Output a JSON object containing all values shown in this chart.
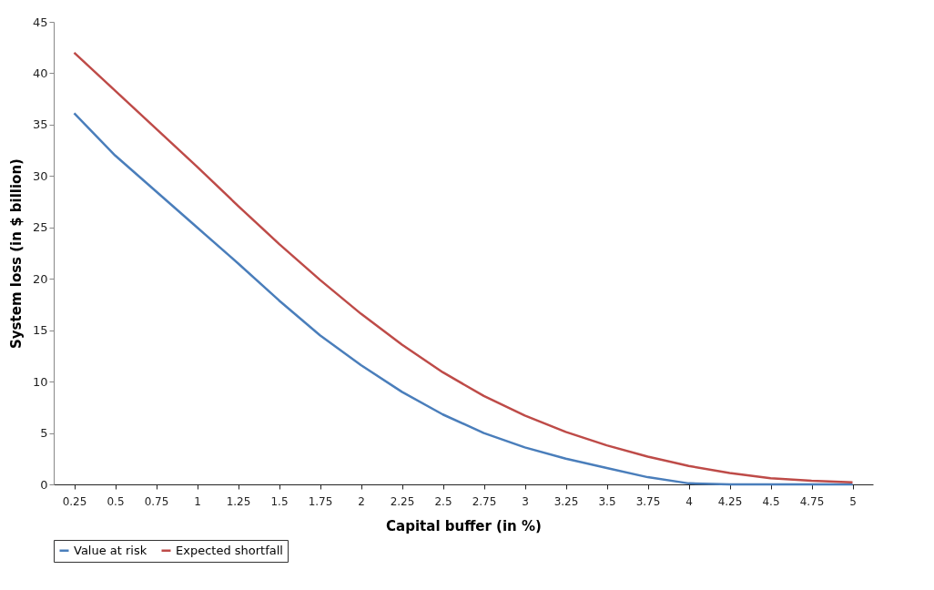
{
  "chart_data": {
    "type": "line",
    "xlabel": "Capital buffer (in %)",
    "ylabel": "System loss (in $ billion)",
    "categories": [
      "0.25",
      "0.5",
      "0.75",
      "1",
      "1.25",
      "1.5",
      "1.75",
      "2",
      "2.25",
      "2.5",
      "2.75",
      "3",
      "3.25",
      "3.5",
      "3.75",
      "4",
      "4.25",
      "4.5",
      "4.75",
      "5"
    ],
    "series": [
      {
        "name": "Value at risk",
        "color": "#4a7ebb",
        "values": [
          36.1,
          32,
          28.5,
          25,
          21.5,
          17.9,
          14.5,
          11.6,
          9,
          6.8,
          5,
          3.6,
          2.5,
          1.6,
          0.7,
          0.1,
          0,
          0,
          0,
          0
        ]
      },
      {
        "name": "Expected shortfall",
        "color": "#be4b48",
        "values": [
          42,
          38.3,
          34.6,
          30.9,
          27.1,
          23.4,
          19.9,
          16.6,
          13.6,
          10.9,
          8.6,
          6.7,
          5.1,
          3.8,
          2.7,
          1.8,
          1.1,
          0.6,
          0.35,
          0.2
        ]
      }
    ],
    "ylim": [
      0,
      45
    ],
    "yticks": [
      0,
      5,
      10,
      15,
      20,
      25,
      30,
      35,
      40,
      45
    ],
    "grid": false,
    "legend": "bottom",
    "marker": "none",
    "line_style": "solid"
  }
}
